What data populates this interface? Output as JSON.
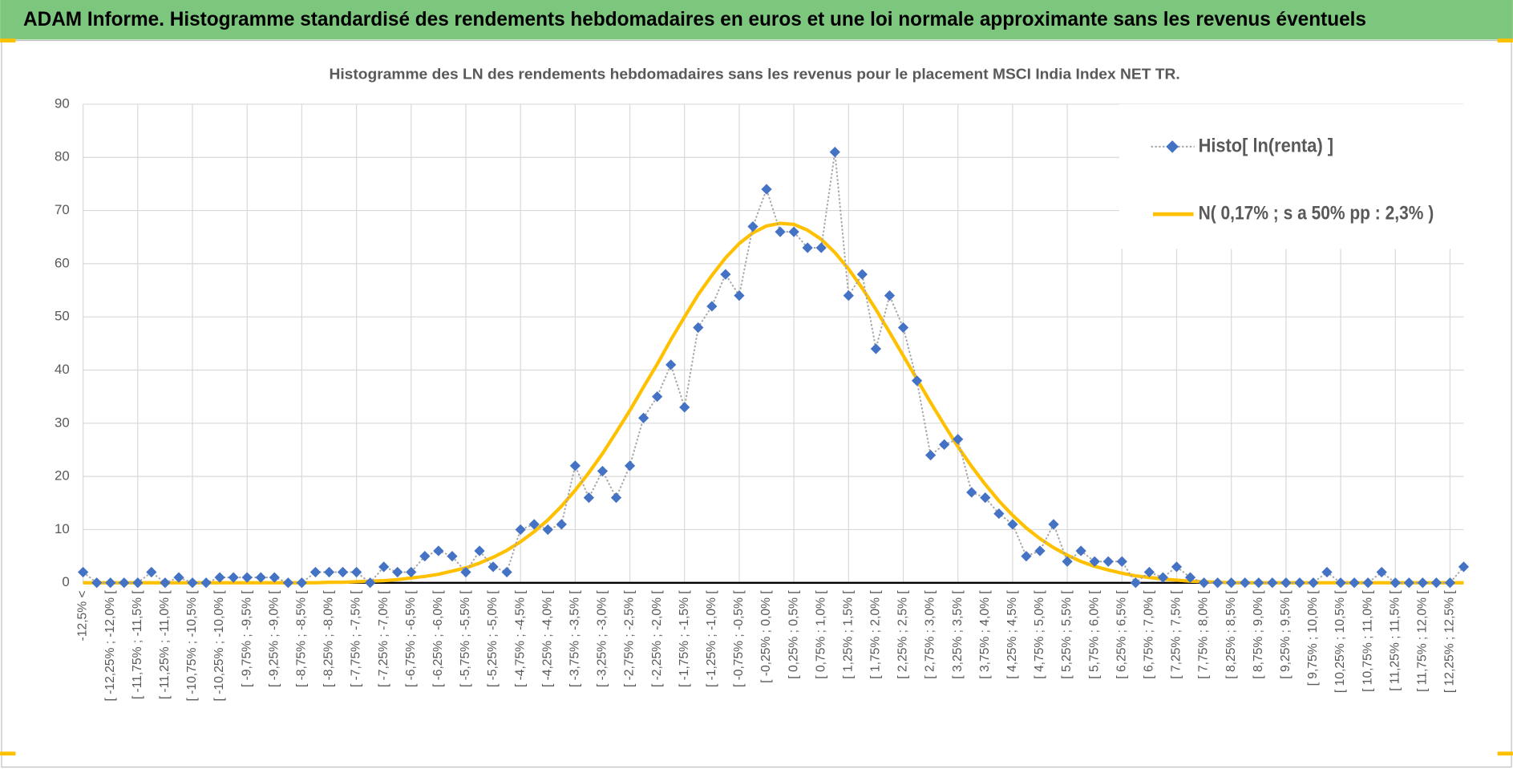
{
  "header": {
    "title": "ADAM Informe. Histogramme standardisé des rendements hebdomadaires en euros et une loi normale approximante sans les revenus éventuels"
  },
  "chart_data": {
    "type": "line",
    "title": "Histogramme des LN des rendements hebdomadaires sans les revenus pour le placement MSCI India Index NET TR.",
    "categories": [
      "-12,5% <",
      null,
      "[ -12,25% ; -12,0% [",
      null,
      "[ -11,75% ; -11,5% [",
      null,
      "[ -11,25% ; -11,0% [",
      null,
      "[ -10,75% ; -10,5% [",
      null,
      "[ -10,25% ; -10,0% [",
      null,
      "[ -9,75% ; -9,5% [",
      null,
      "[ -9,25% ; -9,0% [",
      null,
      "[ -8,75% ; -8,5% [",
      null,
      "[ -8,25% ; -8,0% [",
      null,
      "[ -7,75% ; -7,5% [",
      null,
      "[ -7,25% ; -7,0% [",
      null,
      "[ -6,75% ; -6,5% [",
      null,
      "[ -6,25% ; -6,0% [",
      null,
      "[ -5,75% ; -5,5% [",
      null,
      "[ -5,25% ; -5,0% [",
      null,
      "[ -4,75% ; -4,5% [",
      null,
      "[ -4,25% ; -4,0% [",
      null,
      "[ -3,75% ; -3,5% [",
      null,
      "[ -3,25% ; -3,0% [",
      null,
      "[ -2,75% ; -2,5% [",
      null,
      "[ -2,25% ; -2,0% [",
      null,
      "[ -1,75% ; -1,5% [",
      null,
      "[ -1,25% ; -1,0% [",
      null,
      "[ -0,75% ; -0,5% [",
      null,
      "[ -0,25% ; 0,0% [",
      null,
      "[ 0,25% ; 0,5% [",
      null,
      "[ 0,75% ; 1,0% [",
      null,
      "[ 1,25% ; 1,5% [",
      null,
      "[ 1,75% ; 2,0% [",
      null,
      "[ 2,25% ; 2,5% [",
      null,
      "[ 2,75% ; 3,0% [",
      null,
      "[ 3,25% ; 3,5% [",
      null,
      "[ 3,75% ; 4,0% [",
      null,
      "[ 4,25% ; 4,5% [",
      null,
      "[ 4,75% ; 5,0% [",
      null,
      "[ 5,25% ; 5,5% [",
      null,
      "[ 5,75% ; 6,0% [",
      null,
      "[ 6,25% ; 6,5% [",
      null,
      "[ 6,75% ; 7,0% [",
      null,
      "[ 7,25% ; 7,5% [",
      null,
      "[ 7,75% ; 8,0% [",
      null,
      "[ 8,25% ; 8,5% [",
      null,
      "[ 8,75% ; 9,0% [",
      null,
      "[ 9,25% ; 9,5% [",
      null,
      "[ 9,75% ; 10,0% [",
      null,
      "[ 10,25% ; 10,5% [",
      null,
      "[ 10,75% ; 11,0% [",
      null,
      "[ 11,25% ; 11,5% [",
      null,
      "[ 11,75% ; 12,0% [",
      null,
      "[ 12,25% ; 12,5% [",
      null
    ],
    "series": [
      {
        "name": "Histo[ ln(renta) ]",
        "color": "#4472c4",
        "values": [
          2,
          0,
          0,
          0,
          0,
          2,
          0,
          1,
          0,
          0,
          1,
          1,
          1,
          1,
          1,
          0,
          0,
          2,
          2,
          2,
          2,
          0,
          3,
          2,
          2,
          5,
          6,
          5,
          2,
          6,
          3,
          2,
          10,
          11,
          10,
          11,
          22,
          16,
          21,
          16,
          22,
          31,
          35,
          41,
          33,
          48,
          52,
          58,
          54,
          67,
          74,
          66,
          66,
          63,
          63,
          81,
          54,
          58,
          44,
          54,
          48,
          38,
          24,
          26,
          27,
          17,
          16,
          13,
          11,
          5,
          6,
          11,
          4,
          6,
          4,
          4,
          4,
          0,
          2,
          1,
          3,
          1,
          0,
          0,
          0,
          0,
          0,
          0,
          0,
          0,
          0,
          2,
          0,
          0,
          0,
          2,
          0,
          0,
          0,
          0,
          0,
          3
        ]
      },
      {
        "name": "N( 0,17% ; s a 50% pp : 2,3% )",
        "color": "#ffc000",
        "values": [
          0,
          0,
          0,
          0,
          0,
          0,
          0,
          0,
          0,
          0,
          0,
          0,
          0,
          0,
          0,
          0,
          0,
          0,
          0.1,
          0.1,
          0.2,
          0.3,
          0.4,
          0.6,
          0.9,
          1.2,
          1.6,
          2.2,
          2.8,
          3.7,
          4.8,
          6.1,
          7.7,
          9.6,
          11.8,
          14.4,
          17.4,
          20.7,
          24.3,
          28.3,
          32.4,
          36.8,
          41.1,
          45.7,
          50.0,
          54.2,
          57.8,
          61.1,
          63.8,
          65.8,
          67.1,
          67.6,
          67.4,
          66.3,
          64.6,
          62.1,
          59.0,
          55.4,
          51.4,
          47.1,
          42.7,
          38.3,
          33.9,
          29.7,
          25.6,
          21.9,
          18.5,
          15.4,
          12.7,
          10.3,
          8.3,
          6.6,
          5.2,
          4.0,
          3.1,
          2.4,
          1.8,
          1.3,
          1.0,
          0.7,
          0.5,
          0.3,
          0.2,
          0.1,
          0,
          0,
          0,
          0,
          0,
          0,
          0,
          0,
          0,
          0,
          0,
          0,
          0,
          0,
          0,
          0,
          0,
          0
        ]
      }
    ],
    "ylim": [
      0,
      90
    ],
    "yticks": [
      0,
      10,
      20,
      30,
      40,
      50,
      60,
      70,
      80,
      90
    ],
    "grid": true,
    "legend": "top-right"
  }
}
